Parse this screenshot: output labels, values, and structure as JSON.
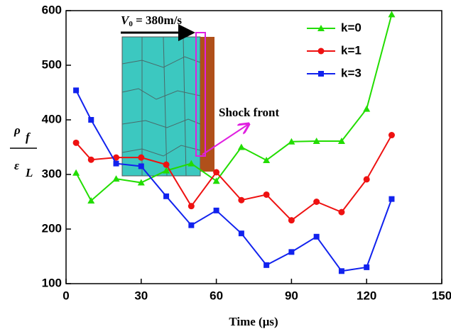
{
  "chart_data": {
    "type": "line",
    "x_label": "Time (μs)",
    "y_label": {
      "numerator": "ρ",
      "numerator_sub": "f",
      "denominator": "ε",
      "denominator_sub": "L"
    },
    "x": [
      4,
      10,
      20,
      30,
      40,
      50,
      60,
      70,
      80,
      90,
      100,
      110,
      120,
      130
    ],
    "series": [
      {
        "name": "k=0",
        "color": "#22dd00",
        "marker": "triangle",
        "values": [
          303,
          252,
          292,
          285,
          307,
          320,
          288,
          350,
          326,
          360,
          361,
          361,
          420,
          593
        ]
      },
      {
        "name": "k=1",
        "color": "#ee1111",
        "marker": "circle",
        "values": [
          358,
          327,
          331,
          331,
          318,
          242,
          304,
          253,
          263,
          216,
          250,
          231,
          291,
          372
        ]
      },
      {
        "name": "k=3",
        "color": "#1122ee",
        "marker": "square",
        "values": [
          454,
          400,
          320,
          315,
          260,
          207,
          234,
          192,
          134,
          158,
          186,
          123,
          130,
          255
        ]
      }
    ],
    "xlim": [
      0,
      150
    ],
    "xticks": [
      0,
      30,
      60,
      90,
      120,
      150
    ],
    "ylim": [
      100,
      600
    ],
    "yticks": [
      100,
      200,
      300,
      400,
      500,
      600
    ],
    "legend": "upper-right",
    "annotations": {
      "velocity_symbol": "V",
      "velocity_sub": "0",
      "velocity_text": " = 380m/s",
      "shock": "Shock front"
    }
  }
}
